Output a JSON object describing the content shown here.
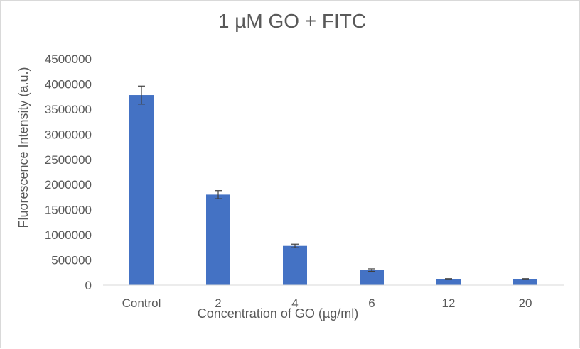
{
  "chart_data": {
    "type": "bar",
    "title": "1 µM GO + FITC",
    "xlabel": "Concentration  of GO (µg/ml)",
    "ylabel": "Fluorescence  Intensity (a.u.)",
    "categories": [
      "Control",
      "2",
      "4",
      "6",
      "12",
      "20"
    ],
    "values": [
      3780000,
      1800000,
      780000,
      300000,
      120000,
      120000
    ],
    "errors": [
      180000,
      80000,
      35000,
      25000,
      10000,
      10000
    ],
    "ylim": [
      0,
      4500000
    ],
    "yticks": [
      "0",
      "500000",
      "1000000",
      "1500000",
      "2000000",
      "2500000",
      "3000000",
      "3500000",
      "4000000",
      "4500000"
    ],
    "grid": false,
    "legend": "none",
    "bar_color": "#4472c4",
    "axis_color": "#d9d9d9",
    "text_color": "#595959"
  }
}
